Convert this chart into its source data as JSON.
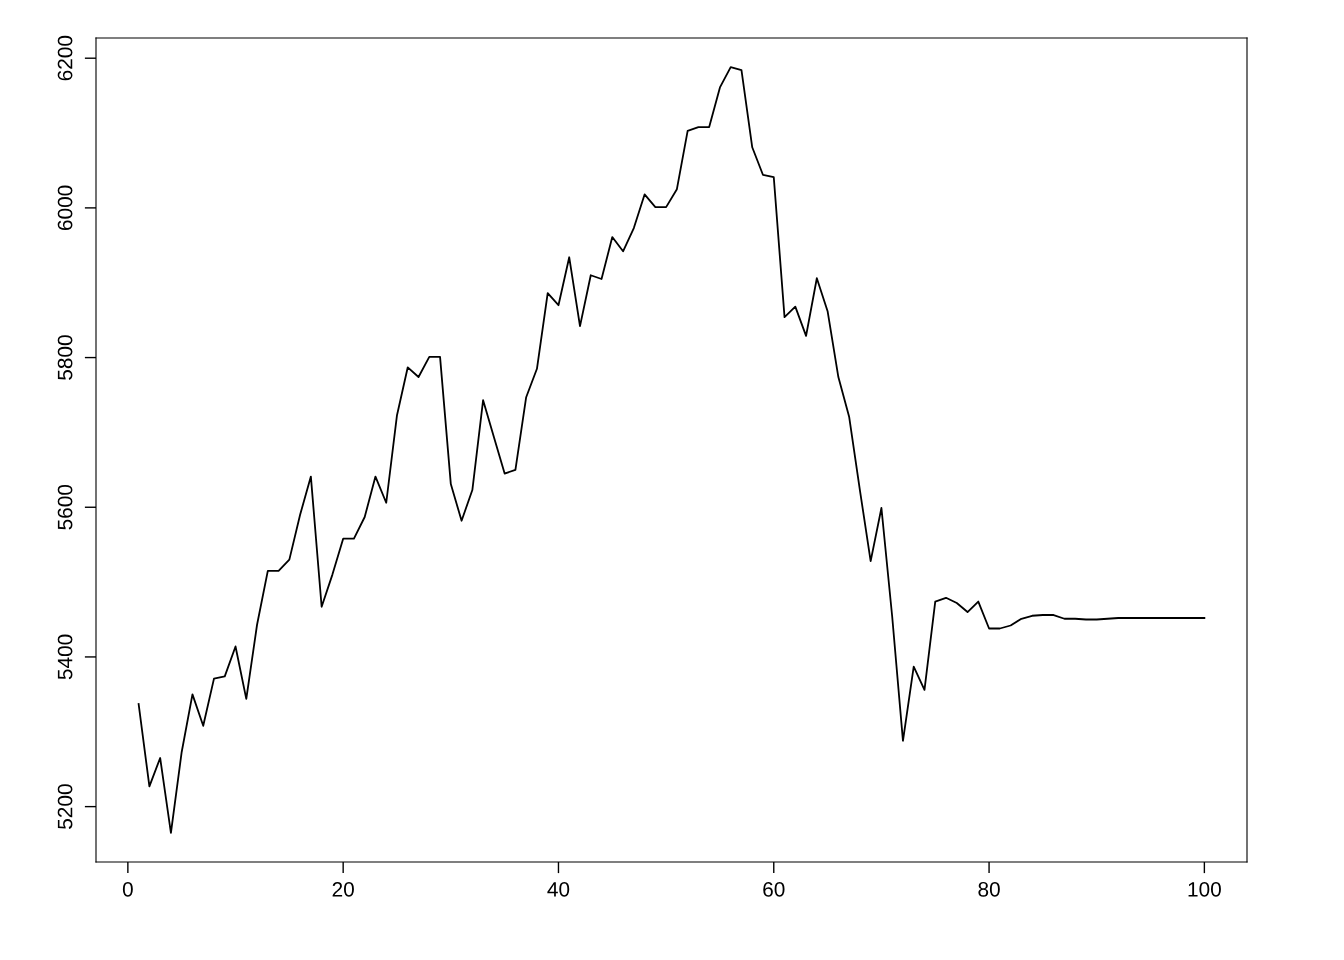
{
  "chart_data": {
    "type": "line",
    "x": [
      1,
      2,
      3,
      4,
      5,
      6,
      7,
      8,
      9,
      10,
      11,
      12,
      13,
      14,
      15,
      16,
      17,
      18,
      19,
      20,
      21,
      22,
      23,
      24,
      25,
      26,
      27,
      28,
      29,
      30,
      31,
      32,
      33,
      34,
      35,
      36,
      37,
      38,
      39,
      40,
      41,
      42,
      43,
      44,
      45,
      46,
      47,
      48,
      49,
      50,
      51,
      52,
      53,
      54,
      55,
      56,
      57,
      58,
      59,
      60,
      61,
      62,
      63,
      64,
      65,
      66,
      67,
      68,
      69,
      70,
      71,
      72,
      73,
      74,
      75,
      76,
      77,
      78,
      79,
      80,
      81,
      82,
      83,
      84,
      85,
      86,
      87,
      88,
      89,
      90,
      91,
      92,
      93,
      94,
      95,
      96,
      97,
      98,
      99,
      100
    ],
    "series": [
      {
        "color": "#000000",
        "values": [
          5337,
          5227,
          5265,
          5165,
          5273,
          5350,
          5308,
          5371,
          5374,
          5414,
          5344,
          5443,
          5515,
          5515,
          5530,
          5590,
          5641,
          5467,
          5510,
          5558,
          5558,
          5587,
          5641,
          5606,
          5723,
          5787,
          5774,
          5801,
          5801,
          5631,
          5582,
          5623,
          5743,
          5694,
          5645,
          5650,
          5747,
          5785,
          5886,
          5870,
          5934,
          5842,
          5910,
          5905,
          5961,
          5942,
          5973,
          6018,
          6001,
          6001,
          6025,
          6103,
          6108,
          6108,
          6161,
          6188,
          6184,
          6081,
          6044,
          6041,
          5854,
          5868,
          5829,
          5906,
          5862,
          5774,
          5721,
          5623,
          5528,
          5599,
          5454,
          5288,
          5387,
          5356,
          5474,
          5479,
          5472,
          5460,
          5474,
          5438,
          5438,
          5442,
          5451,
          5455,
          5456,
          5456,
          5451,
          5451,
          5450,
          5450,
          5451,
          5452,
          5452,
          5452,
          5452,
          5452,
          5452,
          5452,
          5452,
          5452
        ]
      }
    ],
    "xlim": [
      -2.96,
      103.96
    ],
    "ylim": [
      5126,
      6227
    ],
    "xticks": [
      0,
      20,
      40,
      60,
      80,
      100
    ],
    "yticks": [
      5200,
      5400,
      5600,
      5800,
      6000,
      6200
    ],
    "grid": false,
    "legend": false,
    "marker": "none",
    "line_style": "solid"
  }
}
